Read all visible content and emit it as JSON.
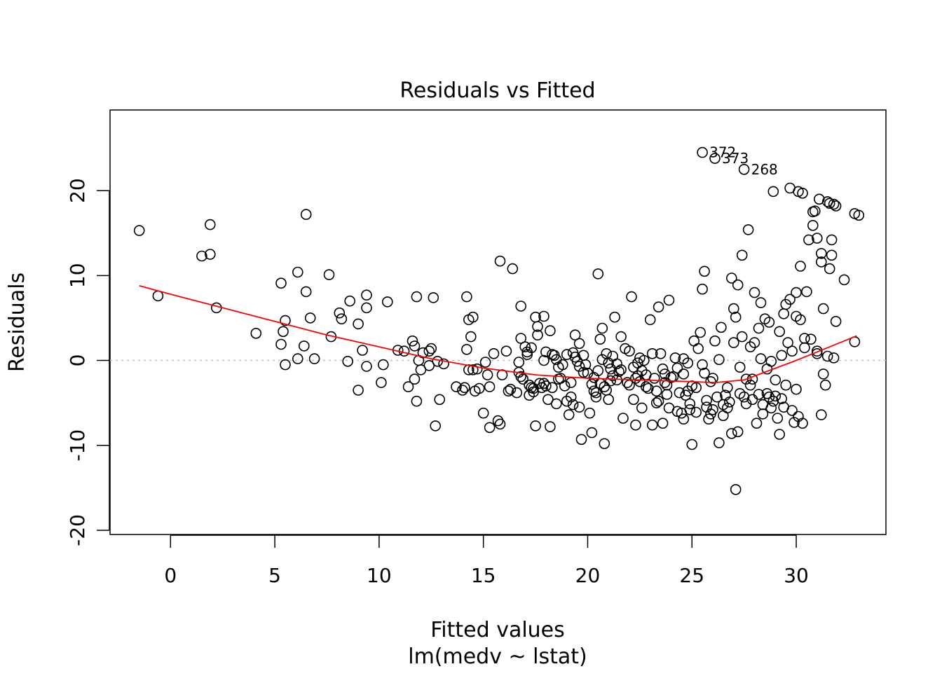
{
  "chart_data": {
    "type": "scatter",
    "title": "Residuals vs Fitted",
    "xlabel": "Fitted values",
    "sublabel": "lm(medv ~ lstat)",
    "ylabel": "Residuals",
    "xlim": [
      -2.9,
      34.3
    ],
    "ylim": [
      -20.5,
      29.5
    ],
    "xticks": [
      0,
      5,
      10,
      15,
      20,
      25,
      30
    ],
    "yticks": [
      -20,
      -10,
      0,
      10,
      20
    ],
    "reference_line_y": 0,
    "colors": {
      "points": "#000000",
      "smooth": "#ff0000",
      "reference": "#bebebe"
    },
    "labeled_points": [
      {
        "label": "372",
        "x": 25.5,
        "y": 24.5
      },
      {
        "label": "373",
        "x": 26.1,
        "y": 23.8
      },
      {
        "label": "268",
        "x": 27.5,
        "y": 22.5
      }
    ],
    "smooth": {
      "x": [
        -1.5,
        0,
        2.5,
        5,
        7.5,
        10,
        12.5,
        15,
        17.5,
        20,
        22.5,
        25,
        26.1,
        27.5,
        30,
        32.9
      ],
      "y": [
        8.8,
        7.8,
        6.2,
        4.6,
        3.0,
        1.6,
        0.2,
        -0.9,
        -1.7,
        -2.1,
        -2.3,
        -2.5,
        -2.6,
        -2.3,
        0,
        2.9
      ]
    },
    "points": [
      [
        -1.5,
        15.3
      ],
      [
        -0.6,
        7.6
      ],
      [
        1.5,
        12.3
      ],
      [
        1.9,
        12.5
      ],
      [
        1.9,
        16.0
      ],
      [
        2.2,
        6.2
      ],
      [
        4.1,
        3.2
      ],
      [
        5.3,
        9.1
      ],
      [
        5.3,
        1.9
      ],
      [
        5.4,
        3.4
      ],
      [
        5.5,
        4.7
      ],
      [
        5.5,
        -0.5
      ],
      [
        6.1,
        10.4
      ],
      [
        6.1,
        0.2
      ],
      [
        6.4,
        1.7
      ],
      [
        6.5,
        17.2
      ],
      [
        6.5,
        8.1
      ],
      [
        6.7,
        5.0
      ],
      [
        6.9,
        0.2
      ],
      [
        7.6,
        10.1
      ],
      [
        7.7,
        2.8
      ],
      [
        8.1,
        5.6
      ],
      [
        8.2,
        4.9
      ],
      [
        8.5,
        -0.1
      ],
      [
        8.6,
        7.0
      ],
      [
        9.0,
        4.3
      ],
      [
        9.0,
        -3.5
      ],
      [
        9.2,
        1.2
      ],
      [
        9.4,
        -0.7
      ],
      [
        9.4,
        7.7
      ],
      [
        9.4,
        6.2
      ],
      [
        10.1,
        -2.6
      ],
      [
        10.2,
        -0.5
      ],
      [
        10.4,
        6.9
      ],
      [
        10.9,
        1.2
      ],
      [
        11.2,
        1.1
      ],
      [
        11.4,
        -3.1
      ],
      [
        11.6,
        2.3
      ],
      [
        11.7,
        1.7
      ],
      [
        11.7,
        -2.2
      ],
      [
        11.8,
        -4.8
      ],
      [
        11.8,
        7.5
      ],
      [
        11.9,
        0.0
      ],
      [
        12.0,
        -1.1
      ],
      [
        12.1,
        0.9
      ],
      [
        12.4,
        1.1
      ],
      [
        12.4,
        -0.6
      ],
      [
        12.5,
        1.4
      ],
      [
        12.6,
        7.4
      ],
      [
        12.7,
        -7.7
      ],
      [
        12.8,
        -0.1
      ],
      [
        12.9,
        -4.6
      ],
      [
        13.1,
        -0.4
      ],
      [
        13.7,
        -3.1
      ],
      [
        14.0,
        -3.5
      ],
      [
        14.1,
        -3.2
      ],
      [
        14.2,
        1.3
      ],
      [
        14.2,
        7.5
      ],
      [
        14.3,
        -1.1
      ],
      [
        14.3,
        4.8
      ],
      [
        14.4,
        2.8
      ],
      [
        14.5,
        -1.1
      ],
      [
        14.5,
        5.1
      ],
      [
        14.6,
        -3.6
      ],
      [
        14.7,
        -1.0
      ],
      [
        14.8,
        -3.3
      ],
      [
        15.0,
        -6.2
      ],
      [
        15.1,
        -0.2
      ],
      [
        15.2,
        -1.7
      ],
      [
        15.3,
        -7.9
      ],
      [
        15.3,
        -3.1
      ],
      [
        15.5,
        0.8
      ],
      [
        15.7,
        -7.1
      ],
      [
        15.8,
        -7.5
      ],
      [
        15.8,
        11.7
      ],
      [
        15.9,
        -1.7
      ],
      [
        16.1,
        1.1
      ],
      [
        16.2,
        -3.6
      ],
      [
        16.3,
        -3.4
      ],
      [
        16.4,
        10.8
      ],
      [
        16.6,
        -3.8
      ],
      [
        16.7,
        -1.4
      ],
      [
        16.7,
        -0.2
      ],
      [
        16.8,
        6.4
      ],
      [
        16.8,
        2.6
      ],
      [
        16.9,
        -2.2
      ],
      [
        17.0,
        1.6
      ],
      [
        17.1,
        1.0
      ],
      [
        17.1,
        0.7
      ],
      [
        17.2,
        -2.9
      ],
      [
        17.2,
        -4.1
      ],
      [
        17.3,
        1.5
      ],
      [
        17.4,
        -3.3
      ],
      [
        17.4,
        -3.7
      ],
      [
        17.5,
        5.1
      ],
      [
        17.5,
        -7.7
      ],
      [
        17.6,
        4.0
      ],
      [
        17.6,
        3.0
      ],
      [
        17.7,
        -2.7
      ],
      [
        17.8,
        -3.2
      ],
      [
        17.9,
        0.0
      ],
      [
        17.9,
        5.2
      ],
      [
        18.0,
        1.0
      ],
      [
        18.0,
        -3.0
      ],
      [
        18.1,
        -4.6
      ],
      [
        18.2,
        3.5
      ],
      [
        18.2,
        -7.8
      ],
      [
        18.3,
        0.7
      ],
      [
        18.3,
        -3.2
      ],
      [
        18.4,
        0.6
      ],
      [
        18.5,
        0.1
      ],
      [
        18.5,
        -5.1
      ],
      [
        18.6,
        -0.8
      ],
      [
        18.7,
        -2.1
      ],
      [
        18.8,
        -0.5
      ],
      [
        18.9,
        -3.0
      ],
      [
        19.0,
        -4.8
      ],
      [
        19.0,
        0.7
      ],
      [
        19.1,
        -6.4
      ],
      [
        19.2,
        -2.6
      ],
      [
        19.2,
        -4.3
      ],
      [
        19.3,
        0.9
      ],
      [
        19.3,
        -5.2
      ],
      [
        19.4,
        3.0
      ],
      [
        19.4,
        0.4
      ],
      [
        19.5,
        -0.1
      ],
      [
        19.6,
        2.0
      ],
      [
        19.6,
        -5.5
      ],
      [
        19.7,
        -9.3
      ],
      [
        19.8,
        0.6
      ],
      [
        19.9,
        -0.5
      ],
      [
        20.0,
        -1.5
      ],
      [
        20.1,
        -6.2
      ],
      [
        20.2,
        -8.5
      ],
      [
        20.2,
        -2.8
      ],
      [
        20.3,
        -3.6
      ],
      [
        20.4,
        -4.3
      ],
      [
        20.5,
        10.2
      ],
      [
        20.5,
        -1.2
      ],
      [
        20.6,
        -2.7
      ],
      [
        20.6,
        2.5
      ],
      [
        20.7,
        3.8
      ],
      [
        20.8,
        -3.1
      ],
      [
        20.8,
        -9.8
      ],
      [
        20.9,
        0.8
      ],
      [
        21.0,
        -0.3
      ],
      [
        21.0,
        -4.6
      ],
      [
        21.1,
        -1.0
      ],
      [
        21.2,
        0.5
      ],
      [
        21.3,
        5.1
      ],
      [
        21.4,
        -2.3
      ],
      [
        21.5,
        -1.3
      ],
      [
        21.6,
        2.8
      ],
      [
        21.7,
        -6.8
      ],
      [
        21.8,
        1.4
      ],
      [
        21.9,
        -2.6
      ],
      [
        22.0,
        1.1
      ],
      [
        22.1,
        7.5
      ],
      [
        22.2,
        -4.6
      ],
      [
        22.2,
        -0.8
      ],
      [
        22.3,
        -7.6
      ],
      [
        22.4,
        -1.8
      ],
      [
        22.4,
        -0.3
      ],
      [
        22.5,
        -2.5
      ],
      [
        22.6,
        -5.6
      ],
      [
        22.7,
        0.0
      ],
      [
        22.8,
        -1.7
      ],
      [
        22.9,
        -3.3
      ],
      [
        23.0,
        4.8
      ],
      [
        23.1,
        -7.6
      ],
      [
        23.1,
        0.8
      ],
      [
        23.2,
        -2.1
      ],
      [
        23.3,
        -3.6
      ],
      [
        23.4,
        -4.8
      ],
      [
        23.4,
        6.3
      ],
      [
        23.5,
        0.8
      ],
      [
        23.6,
        -7.4
      ],
      [
        23.7,
        -1.6
      ],
      [
        23.8,
        -2.9
      ],
      [
        23.9,
        7.1
      ],
      [
        23.9,
        -5.6
      ],
      [
        24.1,
        -1.9
      ],
      [
        24.2,
        0.3
      ],
      [
        24.3,
        -0.9
      ],
      [
        24.4,
        -3.8
      ],
      [
        24.5,
        -6.2
      ],
      [
        24.6,
        -6.9
      ],
      [
        24.6,
        -1.6
      ],
      [
        24.7,
        -4.1
      ],
      [
        24.8,
        -0.3
      ],
      [
        24.9,
        -5.1
      ],
      [
        25.0,
        -9.9
      ],
      [
        25.0,
        -3.0
      ],
      [
        25.1,
        2.3
      ],
      [
        25.2,
        -6.1
      ],
      [
        25.3,
        1.4
      ],
      [
        25.4,
        3.3
      ],
      [
        25.5,
        8.4
      ],
      [
        25.5,
        -0.5
      ],
      [
        25.6,
        10.5
      ],
      [
        25.6,
        -1.5
      ],
      [
        25.7,
        -5.5
      ],
      [
        25.8,
        -6.9
      ],
      [
        25.9,
        -2.5
      ],
      [
        26.0,
        -5.8
      ],
      [
        26.1,
        2.3
      ],
      [
        26.3,
        -9.7
      ],
      [
        26.3,
        0.1
      ],
      [
        26.4,
        3.9
      ],
      [
        26.5,
        -6.5
      ],
      [
        26.6,
        -4.1
      ],
      [
        26.7,
        -5.6
      ],
      [
        26.8,
        -4.9
      ],
      [
        26.9,
        9.7
      ],
      [
        26.9,
        -8.6
      ],
      [
        27.0,
        6.1
      ],
      [
        27.0,
        2.1
      ],
      [
        27.1,
        -15.2
      ],
      [
        27.1,
        5.1
      ],
      [
        27.2,
        -8.4
      ],
      [
        27.2,
        8.9
      ],
      [
        27.3,
        -0.8
      ],
      [
        27.4,
        2.8
      ],
      [
        27.4,
        12.4
      ],
      [
        27.5,
        -4.3
      ],
      [
        27.6,
        -2.2
      ],
      [
        27.7,
        15.4
      ],
      [
        27.8,
        1.6
      ],
      [
        27.9,
        -4.6
      ],
      [
        28.0,
        8.0
      ],
      [
        28.0,
        2.1
      ],
      [
        28.1,
        -7.4
      ],
      [
        28.2,
        -4.0
      ],
      [
        28.2,
        3.8
      ],
      [
        28.3,
        6.8
      ],
      [
        28.3,
        0.2
      ],
      [
        28.4,
        -6.3
      ],
      [
        28.5,
        4.9
      ],
      [
        28.6,
        -3.9
      ],
      [
        28.7,
        4.5
      ],
      [
        28.8,
        -5.6
      ],
      [
        28.8,
        -0.1
      ],
      [
        28.9,
        19.9
      ],
      [
        29.0,
        -2.3
      ],
      [
        29.1,
        -6.8
      ],
      [
        29.2,
        3.4
      ],
      [
        29.2,
        -8.7
      ],
      [
        29.3,
        -4.5
      ],
      [
        29.4,
        5.5
      ],
      [
        29.5,
        6.6
      ],
      [
        29.5,
        -2.9
      ],
      [
        29.6,
        2.1
      ],
      [
        29.7,
        20.3
      ],
      [
        29.7,
        7.2
      ],
      [
        29.8,
        1.1
      ],
      [
        29.9,
        -7.3
      ],
      [
        30.0,
        5.2
      ],
      [
        30.0,
        8.0
      ],
      [
        30.1,
        -6.6
      ],
      [
        30.1,
        19.9
      ],
      [
        30.2,
        11.1
      ],
      [
        30.2,
        4.8
      ],
      [
        30.3,
        19.7
      ],
      [
        30.3,
        -7.4
      ],
      [
        30.4,
        2.6
      ],
      [
        30.5,
        8.1
      ],
      [
        30.6,
        14.2
      ],
      [
        30.7,
        2.5
      ],
      [
        30.8,
        17.5
      ],
      [
        30.8,
        15.9
      ],
      [
        30.9,
        17.6
      ],
      [
        31.0,
        0.8
      ],
      [
        31.0,
        14.4
      ],
      [
        31.1,
        19.0
      ],
      [
        31.2,
        12.6
      ],
      [
        31.2,
        11.6
      ],
      [
        31.3,
        6.1
      ],
      [
        31.3,
        -1.6
      ],
      [
        31.4,
        -2.9
      ],
      [
        31.5,
        18.7
      ],
      [
        31.6,
        18.5
      ],
      [
        31.6,
        10.8
      ],
      [
        31.7,
        12.4
      ],
      [
        31.7,
        14.2
      ],
      [
        31.8,
        0.3
      ],
      [
        31.8,
        18.4
      ],
      [
        31.9,
        18.2
      ],
      [
        31.9,
        4.6
      ],
      [
        32.3,
        9.5
      ],
      [
        32.8,
        2.2
      ],
      [
        32.8,
        17.3
      ],
      [
        33.0,
        17.1
      ],
      [
        31.2,
        -6.4
      ],
      [
        31.0,
        1.1
      ],
      [
        24.6,
        0.2
      ],
      [
        22.5,
        0.3
      ],
      [
        21.2,
        -1.8
      ],
      [
        20.4,
        -3.8
      ],
      [
        19.8,
        -1.4
      ],
      [
        23.6,
        -1.0
      ],
      [
        24.0,
        -2.0
      ],
      [
        25.2,
        -3.2
      ],
      [
        26.2,
        -4.3
      ],
      [
        27.6,
        -5.1
      ],
      [
        28.4,
        -5.2
      ],
      [
        29.0,
        -4.2
      ],
      [
        22.0,
        -2.9
      ],
      [
        21.6,
        -1.1
      ],
      [
        20.9,
        -3.5
      ],
      [
        22.8,
        -3.1
      ],
      [
        23.8,
        -4.0
      ],
      [
        24.9,
        -5.8
      ],
      [
        25.9,
        -6.3
      ],
      [
        27.3,
        -3.9
      ],
      [
        28.9,
        -4.8
      ],
      [
        29.8,
        -5.9
      ],
      [
        21.4,
        -0.4
      ],
      [
        22.6,
        -1.2
      ],
      [
        20.7,
        0.1
      ],
      [
        19.6,
        -0.7
      ],
      [
        18.6,
        -2.2
      ],
      [
        17.9,
        -2.7
      ],
      [
        17.3,
        -3.2
      ],
      [
        16.8,
        -1.9
      ],
      [
        26.5,
        -5.2
      ],
      [
        27.8,
        -2.9
      ],
      [
        28.7,
        -4.3
      ],
      [
        29.4,
        -5.5
      ],
      [
        30.0,
        -3.4
      ],
      [
        23.3,
        -5.0
      ],
      [
        24.3,
        -6.0
      ],
      [
        25.7,
        -4.7
      ],
      [
        26.7,
        -3.2
      ],
      [
        27.9,
        -2.2
      ],
      [
        28.6,
        -1.0
      ],
      [
        29.3,
        0.6
      ],
      [
        30.4,
        1.5
      ],
      [
        31.5,
        0.5
      ],
      [
        22.3,
        -2.1
      ],
      [
        21.1,
        -2.4
      ],
      [
        20.3,
        -2.0
      ],
      [
        23.7,
        -2.6
      ],
      [
        24.8,
        -3.6
      ],
      [
        26.0,
        -2.1
      ]
    ]
  }
}
